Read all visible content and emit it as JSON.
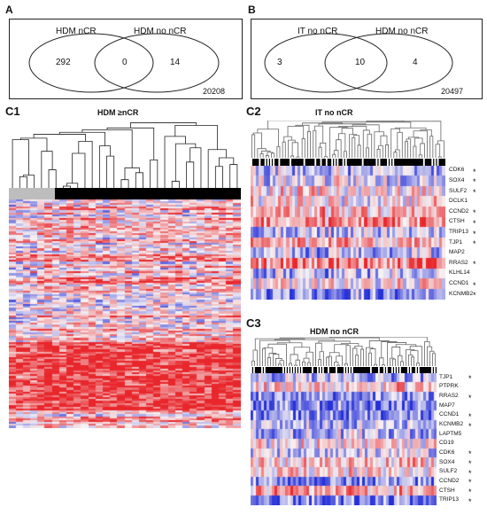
{
  "panel_a": {
    "letter": "A",
    "left_label": "HDM nCR",
    "right_label": "HDM no nCR",
    "left_only": "292",
    "overlap": "0",
    "right_only": "14",
    "total": "20208"
  },
  "panel_b": {
    "letter": "B",
    "left_label": "IT no nCR",
    "right_label": "HDM no nCR",
    "left_only": "3",
    "overlap": "10",
    "right_only": "4",
    "total": "20497"
  },
  "c1": {
    "letter": "C1",
    "title": "HDM ≥nCR"
  },
  "c2": {
    "letter": "C2",
    "title": "IT no nCR",
    "genes": [
      "CDK6",
      "SOX4",
      "SULF2",
      "DCLK1",
      "CCND2",
      "CTSH",
      "TRIP13",
      "TJP1",
      "MAP2",
      "RRAS2",
      "KLHL14",
      "CCND1",
      "KCNMB2"
    ],
    "starred": [
      true,
      true,
      true,
      false,
      true,
      true,
      true,
      true,
      false,
      true,
      false,
      true,
      true
    ]
  },
  "c3": {
    "letter": "C3",
    "title": "HDM  no nCR",
    "genes": [
      "TJP1",
      "PTPRK",
      "RRAS2",
      "MAP7",
      "CCND1",
      "KCNMB2",
      "LAPTM5",
      "CD19",
      "CDK6",
      "SOX4",
      "SULF2",
      "CCND2",
      "CTSH",
      "TRIP13"
    ],
    "starred": [
      true,
      false,
      true,
      false,
      true,
      true,
      false,
      false,
      true,
      true,
      true,
      true,
      true,
      true
    ]
  },
  "colors": {
    "red": "#e8262b",
    "blue": "#2630d8",
    "mid": "#f6f2f4",
    "grey_bar": "#bdbdbd",
    "black_bar": "#000000"
  }
}
